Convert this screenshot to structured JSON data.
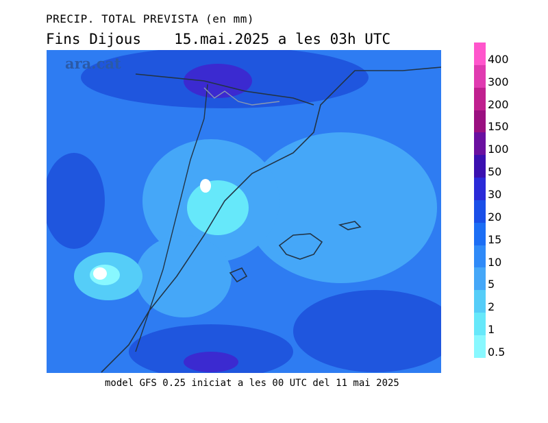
{
  "header": {
    "title": "PRECIP. TOTAL PREVISTA (en mm)",
    "subtitle_left": "Fins Dijous",
    "subtitle_right": "15.mai.2025 a les 03h UTC"
  },
  "watermark": "ara.cat",
  "footer": "model GFS 0.25 iniciat a les 00 UTC del 11 mai 2025",
  "legend": {
    "levels": [
      "400",
      "300",
      "200",
      "150",
      "100",
      "50",
      "30",
      "20",
      "15",
      "10",
      "5",
      "2",
      "1",
      "0.5"
    ],
    "colors": [
      "#ff55cc",
      "#e03ab0",
      "#c0208f",
      "#9a1080",
      "#6a10a0",
      "#3a10b0",
      "#2a2ad8",
      "#1a4fe8",
      "#1c6ef5",
      "#2f8af8",
      "#45a7f8",
      "#55cdf8",
      "#66e8fa",
      "#88f8ff"
    ]
  },
  "map": {
    "base_color": "#2e7cf2"
  }
}
